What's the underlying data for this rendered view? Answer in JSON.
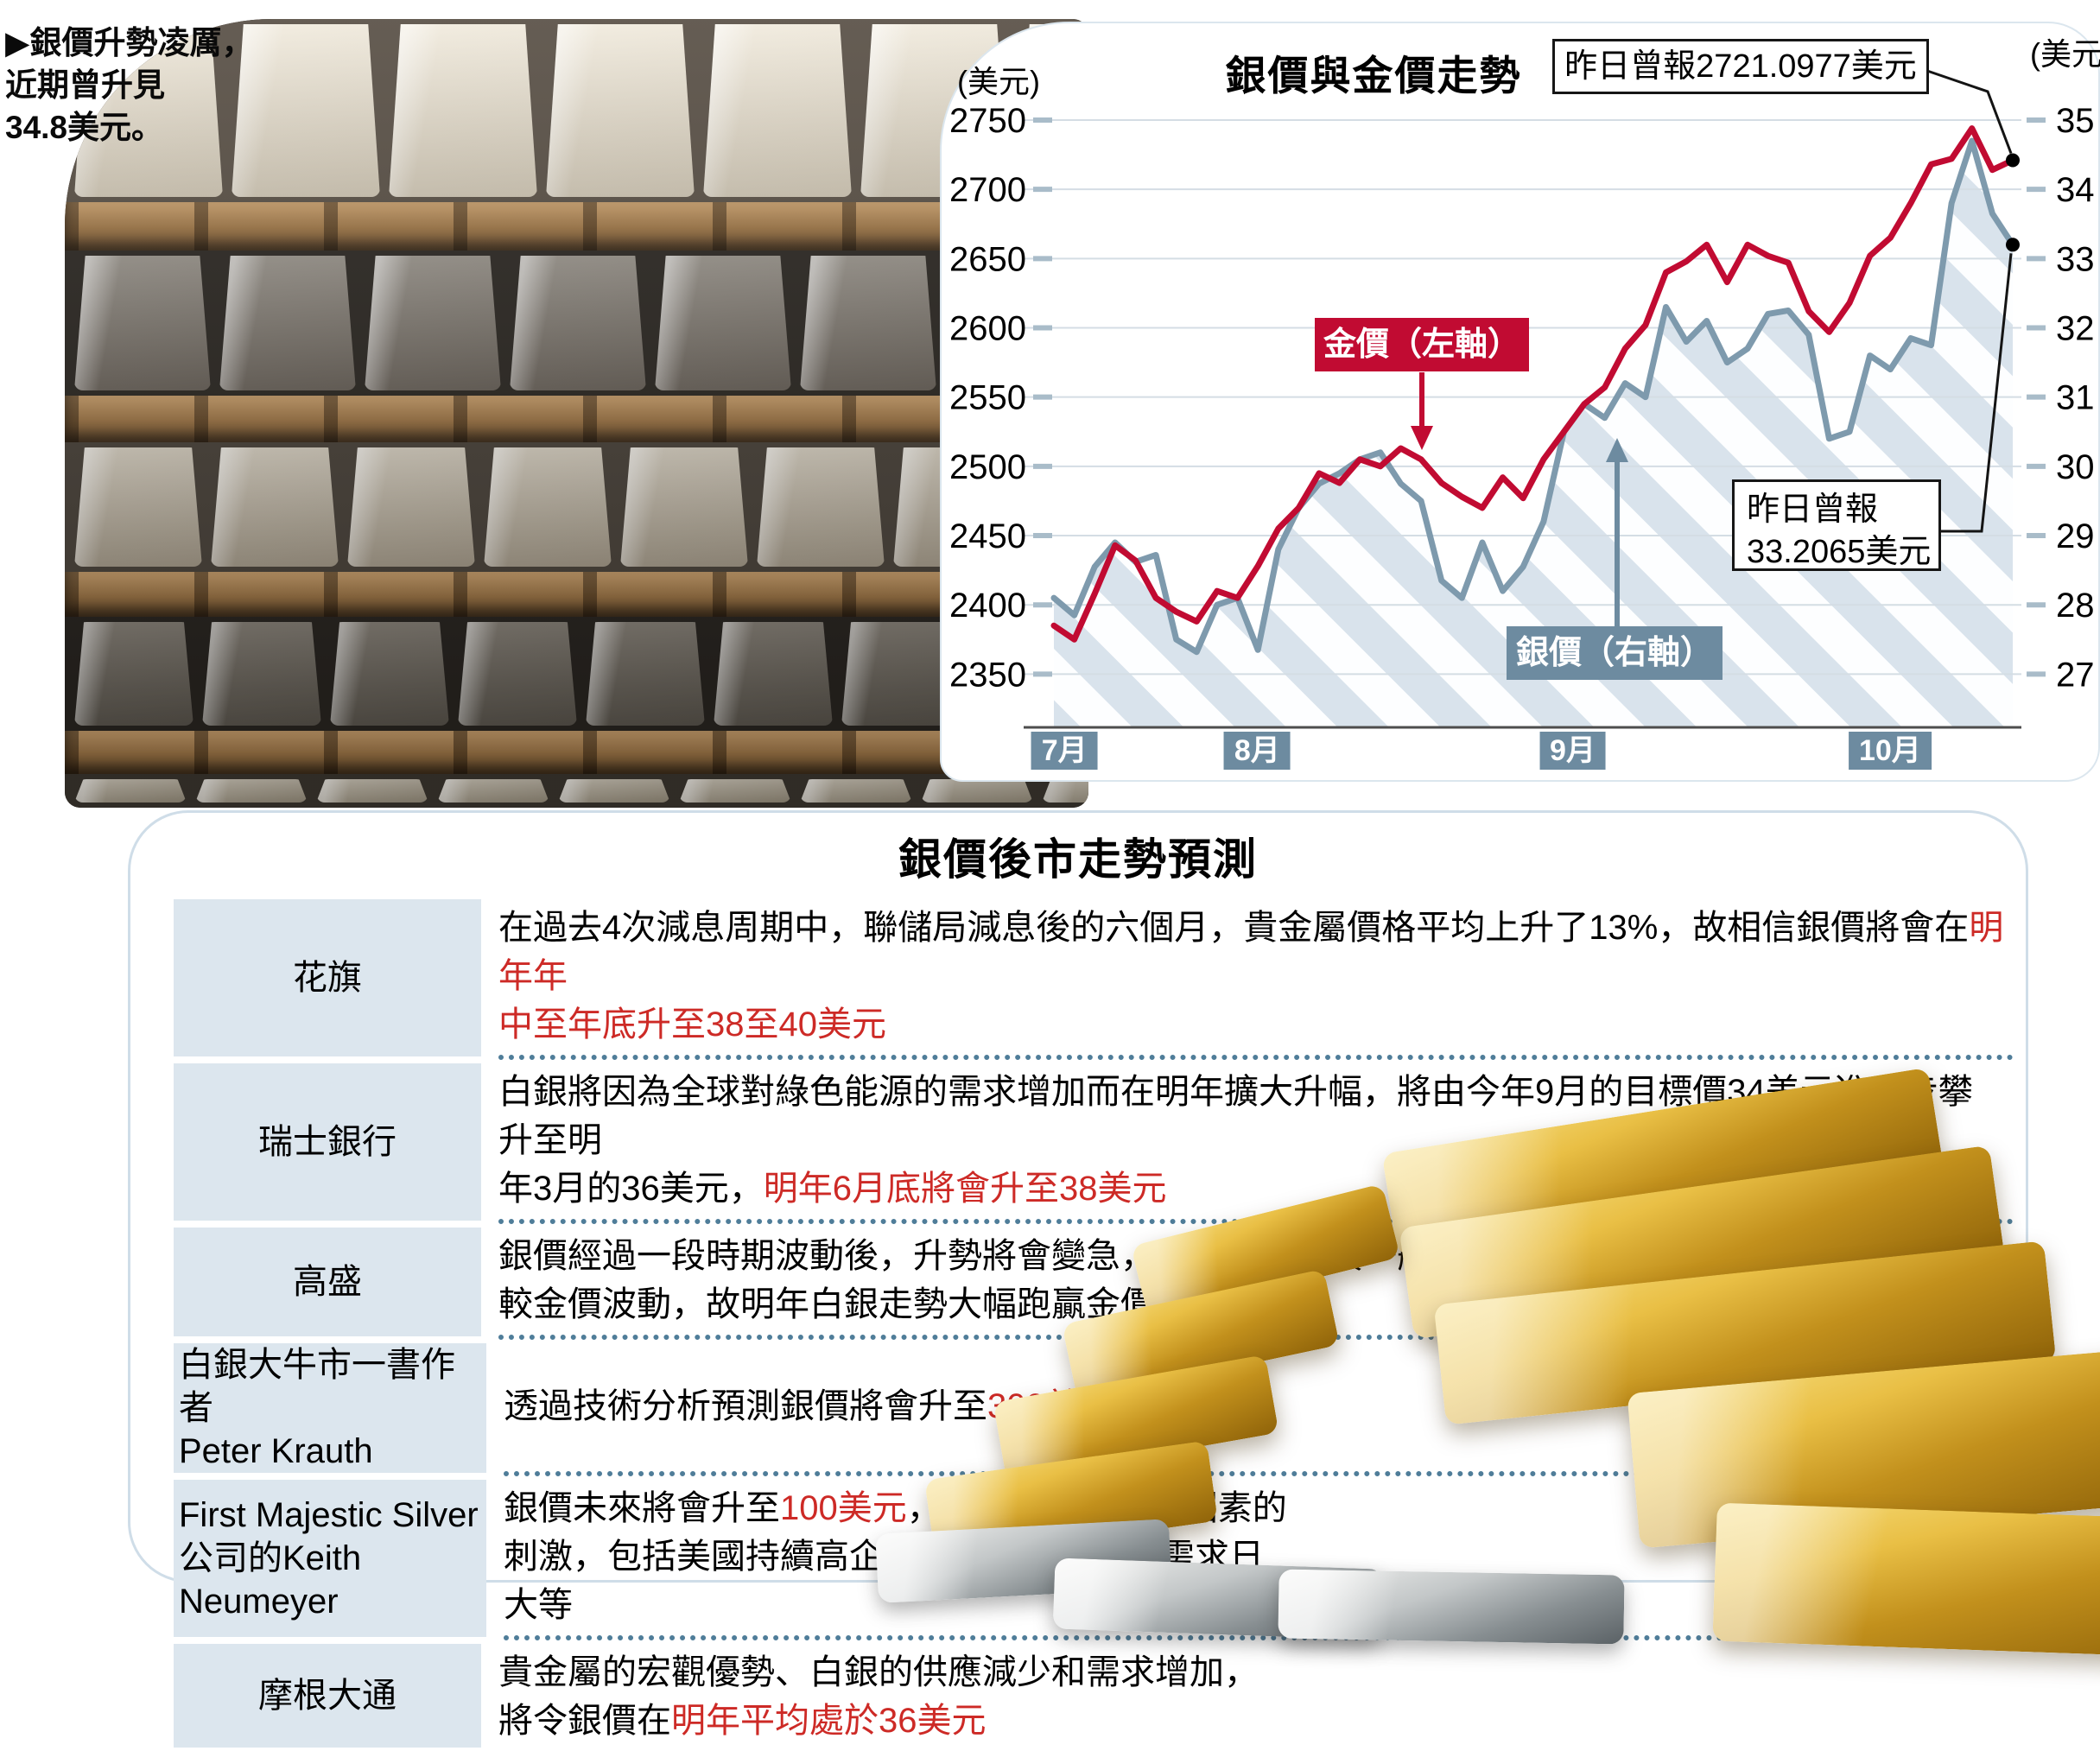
{
  "photo_caption": "▶銀價升勢凌厲，\n近期曾升見\n34.8美元。",
  "chart_data": {
    "type": "line",
    "title": "銀價與金價走勢",
    "left_axis": {
      "unit": "(美元)",
      "min": 2350,
      "max": 2750,
      "ticks": [
        2750,
        2700,
        2650,
        2600,
        2550,
        2500,
        2450,
        2400,
        2350
      ]
    },
    "right_axis": {
      "unit": "(美元)",
      "min": 27,
      "max": 35,
      "ticks": [
        35,
        34,
        33,
        32,
        31,
        30,
        29,
        28,
        27
      ]
    },
    "x_months": {
      "labels": [
        "7月",
        "8月",
        "9月",
        "10月"
      ],
      "fractions": [
        0.011,
        0.212,
        0.541,
        0.872
      ]
    },
    "series": [
      {
        "name": "金價（左軸）",
        "axis": "left",
        "color": "#c10b32",
        "values": [
          2385,
          2375,
          2408,
          2443,
          2432,
          2405,
          2395,
          2388,
          2410,
          2405,
          2428,
          2455,
          2470,
          2495,
          2488,
          2505,
          2500,
          2513,
          2505,
          2488,
          2478,
          2470,
          2492,
          2477,
          2505,
          2525,
          2545,
          2557,
          2585,
          2602,
          2640,
          2648,
          2660,
          2633,
          2660,
          2652,
          2647,
          2612,
          2597,
          2618,
          2652,
          2665,
          2690,
          2718,
          2722,
          2744,
          2714,
          2721
        ]
      },
      {
        "name": "銀價（右軸）",
        "axis": "right",
        "color": "#7e9aad",
        "area_hatch": true,
        "values": [
          28.1,
          27.85,
          28.55,
          28.9,
          28.62,
          28.72,
          27.5,
          27.32,
          28.0,
          28.1,
          27.35,
          28.8,
          29.4,
          29.75,
          29.9,
          30.1,
          30.2,
          29.75,
          29.5,
          28.35,
          28.1,
          28.9,
          28.2,
          28.55,
          29.2,
          30.5,
          30.9,
          30.7,
          31.2,
          31.0,
          32.3,
          31.8,
          32.1,
          31.5,
          31.7,
          32.2,
          32.25,
          31.9,
          30.4,
          30.5,
          31.6,
          31.4,
          31.85,
          31.75,
          33.8,
          34.7,
          33.65,
          33.2
        ]
      }
    ],
    "legend": [
      {
        "label": "金價（左軸）",
        "color": "#c10b32"
      },
      {
        "label": "銀價（右軸）",
        "color": "#6d8ba0"
      }
    ],
    "annotations": [
      {
        "text": "昨日曾報2721.0977美元",
        "series": "金價",
        "value": 2721.0977
      },
      {
        "text": "昨日曾報\n33.2065美元",
        "series": "銀價",
        "value": 33.2065
      }
    ]
  },
  "forecast": {
    "title": "銀價後市走勢預測",
    "accent_red": "#cd2a26",
    "rows": [
      {
        "source": "花旗",
        "segments": [
          {
            "text": "在過去4次減息周期中，聯儲局減息後的六個月，貴金屬價格平均上升了13%，故相信銀價將會在",
            "red": false
          },
          {
            "text": "明年年\n中至年底升至38至40美元",
            "red": true
          }
        ]
      },
      {
        "source": "瑞士銀行",
        "segments": [
          {
            "text": "白銀將因為全球對綠色能源的需求增加而在明年擴大升幅，將由今年9月的目標價34美元進一步攀升至明\n年3月的36美元，",
            "red": false
          },
          {
            "text": "明年6月底將會升至38美元",
            "red": true
          }
        ]
      },
      {
        "source": "高盛",
        "segments": [
          {
            "text": "銀價經過一段時期波動後，升勢將會變急，而且由於銀價一般\n較金價波動，故明年白銀走勢大幅跑贏金價不足為奇",
            "red": false
          }
        ]
      },
      {
        "source": "白銀大牛市一書作者\nPeter  Krauth",
        "segments": [
          {
            "text": "透過技術分析預測銀價將會升至",
            "red": false
          },
          {
            "text": "300美元",
            "red": true
          }
        ]
      },
      {
        "source": "First  Majestic  Silver\n公司的Keith  Neumeyer",
        "segments": [
          {
            "text": "銀價未來將會升至",
            "red": false
          },
          {
            "text": "100美元",
            "red": true
          },
          {
            "text": "，主要受到一系列因素的\n刺激，包括美國持續高企的財政赤字、工業需求日\n大等",
            "red": false
          }
        ]
      },
      {
        "source": "摩根大通",
        "segments": [
          {
            "text": "貴金屬的宏觀優勢、白銀的供應減少和需求增加，\n將令銀價在",
            "red": false
          },
          {
            "text": "明年平均處於36美元",
            "red": true
          }
        ]
      }
    ]
  }
}
